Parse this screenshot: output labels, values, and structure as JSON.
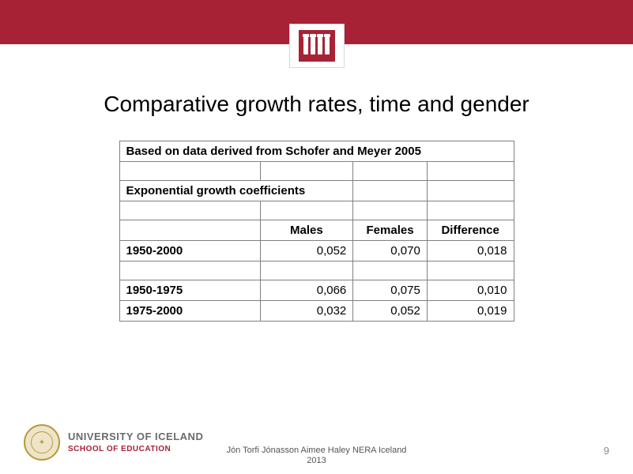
{
  "header": {
    "bar_color": "#a82235"
  },
  "slide": {
    "title": "Comparative growth rates, time and gender"
  },
  "table": {
    "caption1": "Based on data derived from Schofer and Meyer 2005",
    "caption2": "Exponential growth coefficients",
    "columns": {
      "c1": "",
      "c2": "Males",
      "c3": "Females",
      "c4": "Difference"
    },
    "rows": [
      {
        "period": "1950-2000",
        "males": "0,052",
        "females": "0,070",
        "diff": "0,018"
      },
      {
        "period": "",
        "males": "",
        "females": "",
        "diff": ""
      },
      {
        "period": "1950-1975",
        "males": "0,066",
        "females": "0,075",
        "diff": "0,010"
      },
      {
        "period": "1975-2000",
        "males": "0,032",
        "females": "0,052",
        "diff": "0,019"
      }
    ]
  },
  "footer": {
    "university": "UNIVERSITY OF ICELAND",
    "school": "SCHOOL OF EDUCATION",
    "caption_line1": "Jón Torfi Jónasson Aimee Haley NERA Iceland",
    "caption_line2": "2013",
    "page_number": "9"
  }
}
